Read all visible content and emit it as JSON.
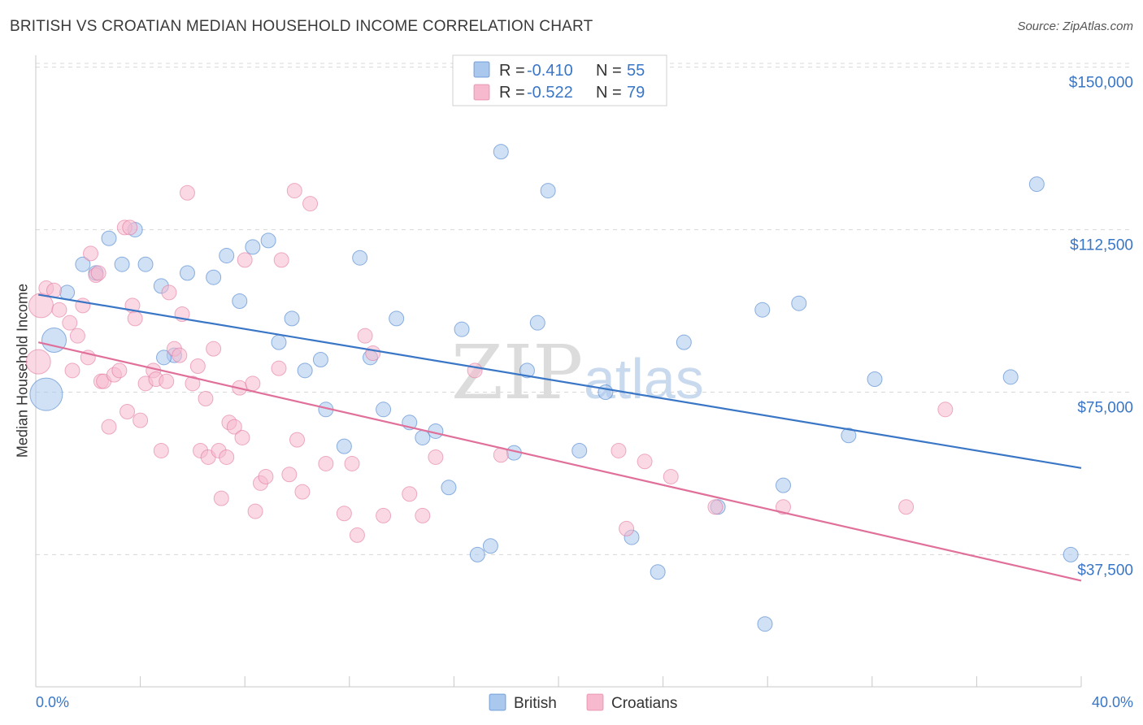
{
  "title": "BRITISH VS CROATIAN MEDIAN HOUSEHOLD INCOME CORRELATION CHART",
  "source": "Source: ZipAtlas.com",
  "watermark": {
    "zip": "ZIP",
    "atlas": "atlas"
  },
  "colors": {
    "british": "#3a76c6",
    "croatians": "#e0709a",
    "british_fill": "#aac8ee",
    "croatians_fill": "#f6b9cd",
    "grid": "#d8d8d8",
    "tick": "#3a76c6"
  },
  "legend": {
    "british": {
      "r_label": "R =",
      "r_value": "-0.410",
      "n_label": "N =",
      "n_value": "55"
    },
    "croatians": {
      "r_label": "R =",
      "r_value": "-0.522",
      "n_label": "N =",
      "n_value": "79"
    }
  },
  "bottom_legend": [
    "British",
    "Croatians"
  ],
  "chart_data": {
    "type": "scatter",
    "title": "BRITISH VS CROATIAN MEDIAN HOUSEHOLD INCOME CORRELATION CHART",
    "xlabel": "",
    "ylabel": "Median Household Income",
    "xlim": [
      0,
      40
    ],
    "ylim": [
      7000,
      158000
    ],
    "x_tick_labels": [
      "0.0%",
      "40.0%"
    ],
    "y_ticks": [
      37500,
      75000,
      112500,
      150000
    ],
    "y_tick_labels": [
      "$37,500",
      "$75,000",
      "$112,500",
      "$150,000"
    ],
    "grid": true,
    "series": [
      {
        "name": "British",
        "trend": [
          [
            0.1,
            97500
          ],
          [
            40,
            57500
          ]
        ],
        "points": [
          [
            0.4,
            74500,
            3
          ],
          [
            0.7,
            87000,
            2
          ],
          [
            1.2,
            98000,
            1
          ],
          [
            1.8,
            104500,
            1
          ],
          [
            2.3,
            102500,
            1
          ],
          [
            2.8,
            110500,
            1
          ],
          [
            3.3,
            104500,
            1
          ],
          [
            3.8,
            112500,
            1
          ],
          [
            4.2,
            104500,
            1
          ],
          [
            4.8,
            99500,
            1
          ],
          [
            5.3,
            83500,
            1
          ],
          [
            5.8,
            102500,
            1
          ],
          [
            6.8,
            101500,
            1
          ],
          [
            7.3,
            106500,
            1
          ],
          [
            7.8,
            96000,
            1
          ],
          [
            8.3,
            108500,
            1
          ],
          [
            8.9,
            110000,
            1
          ],
          [
            9.3,
            86500,
            1
          ],
          [
            9.8,
            92000,
            1
          ],
          [
            10.3,
            80000,
            1
          ],
          [
            10.9,
            82500,
            1
          ],
          [
            11.1,
            71000,
            1
          ],
          [
            11.8,
            62500,
            1
          ],
          [
            12.4,
            106000,
            1
          ],
          [
            12.8,
            83000,
            1
          ],
          [
            13.3,
            71000,
            1
          ],
          [
            13.8,
            92000,
            1
          ],
          [
            14.3,
            68000,
            1
          ],
          [
            14.8,
            64500,
            1
          ],
          [
            15.3,
            66000,
            1
          ],
          [
            15.8,
            53000,
            1
          ],
          [
            16.3,
            89500,
            1
          ],
          [
            16.9,
            37500,
            1
          ],
          [
            17.4,
            39500,
            1
          ],
          [
            17.8,
            130500,
            1
          ],
          [
            18.3,
            61000,
            1
          ],
          [
            18.8,
            80000,
            1
          ],
          [
            19.2,
            91000,
            1
          ],
          [
            19.6,
            121500,
            1
          ],
          [
            20.8,
            61500,
            1
          ],
          [
            21.8,
            75000,
            1
          ],
          [
            22.8,
            41500,
            1
          ],
          [
            23.8,
            33500,
            1
          ],
          [
            24.8,
            86500,
            1
          ],
          [
            26.1,
            48500,
            1
          ],
          [
            27.8,
            94000,
            1
          ],
          [
            27.9,
            21500,
            1
          ],
          [
            28.6,
            53500,
            1
          ],
          [
            29.2,
            95500,
            1
          ],
          [
            31.1,
            65000,
            1
          ],
          [
            32.1,
            78000,
            1
          ],
          [
            37.3,
            78500,
            1
          ],
          [
            38.3,
            123000,
            1
          ],
          [
            39.6,
            37500,
            1
          ],
          [
            4.9,
            83000,
            1
          ]
        ]
      },
      {
        "name": "Croatians",
        "trend": [
          [
            0.1,
            86500
          ],
          [
            40,
            31500
          ]
        ],
        "points": [
          [
            0.1,
            82000,
            2
          ],
          [
            0.2,
            95000,
            2
          ],
          [
            0.4,
            99000,
            1
          ],
          [
            0.7,
            98500,
            1
          ],
          [
            0.9,
            94000,
            1
          ],
          [
            1.3,
            91000,
            1
          ],
          [
            1.4,
            80000,
            1
          ],
          [
            1.6,
            88000,
            1
          ],
          [
            1.8,
            95000,
            1
          ],
          [
            2.0,
            83000,
            1
          ],
          [
            2.1,
            107000,
            1
          ],
          [
            2.3,
            102000,
            1
          ],
          [
            2.5,
            77500,
            1
          ],
          [
            2.6,
            77500,
            1
          ],
          [
            2.8,
            67000,
            1
          ],
          [
            3.0,
            79000,
            1
          ],
          [
            3.2,
            80000,
            1
          ],
          [
            3.4,
            113000,
            1
          ],
          [
            3.5,
            70500,
            1
          ],
          [
            3.6,
            113000,
            1
          ],
          [
            3.7,
            95000,
            1
          ],
          [
            3.8,
            92000,
            1
          ],
          [
            4.0,
            68500,
            1
          ],
          [
            4.2,
            77000,
            1
          ],
          [
            4.5,
            80000,
            1
          ],
          [
            4.6,
            78000,
            1
          ],
          [
            4.8,
            61500,
            1
          ],
          [
            5.0,
            77500,
            1
          ],
          [
            5.1,
            98000,
            1
          ],
          [
            5.3,
            85000,
            1
          ],
          [
            5.5,
            83500,
            1
          ],
          [
            5.6,
            93000,
            1
          ],
          [
            5.8,
            121000,
            1
          ],
          [
            6.0,
            77000,
            1
          ],
          [
            6.2,
            81000,
            1
          ],
          [
            6.3,
            61500,
            1
          ],
          [
            6.5,
            73500,
            1
          ],
          [
            6.6,
            60000,
            1
          ],
          [
            6.8,
            85000,
            1
          ],
          [
            7.0,
            61500,
            1
          ],
          [
            7.1,
            50500,
            1
          ],
          [
            7.3,
            60000,
            1
          ],
          [
            7.4,
            68000,
            1
          ],
          [
            7.6,
            67000,
            1
          ],
          [
            7.8,
            76000,
            1
          ],
          [
            7.9,
            64500,
            1
          ],
          [
            8.0,
            105500,
            1
          ],
          [
            8.3,
            77000,
            1
          ],
          [
            8.4,
            47500,
            1
          ],
          [
            8.6,
            54000,
            1
          ],
          [
            8.8,
            55500,
            1
          ],
          [
            9.3,
            80500,
            1
          ],
          [
            9.4,
            105500,
            1
          ],
          [
            9.7,
            56000,
            1
          ],
          [
            9.9,
            121500,
            1
          ],
          [
            10.0,
            64000,
            1
          ],
          [
            10.2,
            52000,
            1
          ],
          [
            10.5,
            118500,
            1
          ],
          [
            11.1,
            58500,
            1
          ],
          [
            11.8,
            47000,
            1
          ],
          [
            12.1,
            58500,
            1
          ],
          [
            12.3,
            42000,
            1
          ],
          [
            12.6,
            88000,
            1
          ],
          [
            12.9,
            84000,
            1
          ],
          [
            13.3,
            46500,
            1
          ],
          [
            14.3,
            51500,
            1
          ],
          [
            14.8,
            46500,
            1
          ],
          [
            15.3,
            60000,
            1
          ],
          [
            16.8,
            80000,
            1
          ],
          [
            17.8,
            60500,
            1
          ],
          [
            22.3,
            61500,
            1
          ],
          [
            22.6,
            43500,
            1
          ],
          [
            23.3,
            59000,
            1
          ],
          [
            24.3,
            55500,
            1
          ],
          [
            26.0,
            48500,
            1
          ],
          [
            28.6,
            48500,
            1
          ],
          [
            33.3,
            48500,
            1
          ],
          [
            34.8,
            71000,
            1
          ],
          [
            2.4,
            102500,
            1
          ]
        ]
      }
    ]
  }
}
